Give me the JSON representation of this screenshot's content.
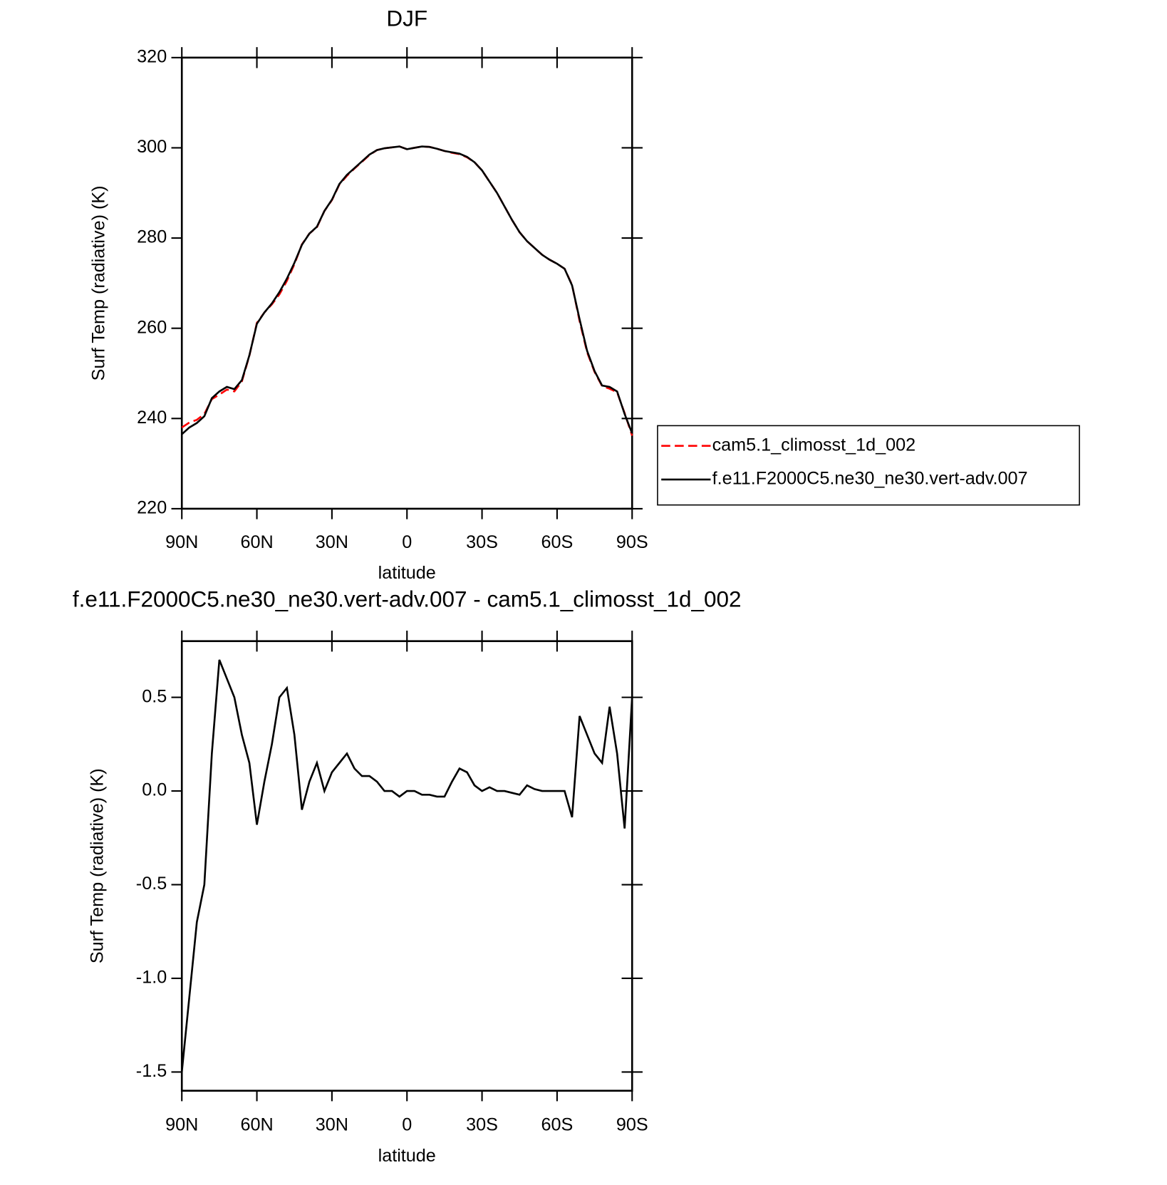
{
  "chart_data": [
    {
      "type": "line",
      "title": "DJF",
      "xlabel": "latitude",
      "ylabel": "Surf Temp (radiative) (K)",
      "x": [
        90,
        87,
        84,
        81,
        78,
        75,
        72,
        69,
        66,
        63,
        60,
        57,
        54,
        51,
        48,
        45,
        42,
        39,
        36,
        33,
        30,
        27,
        24,
        21,
        18,
        15,
        12,
        9,
        6,
        3,
        0,
        -3,
        -6,
        -9,
        -12,
        -15,
        -18,
        -21,
        -24,
        -27,
        -30,
        -33,
        -36,
        -39,
        -42,
        -45,
        -48,
        -51,
        -54,
        -57,
        -60,
        -63,
        -66,
        -69,
        -72,
        -75,
        -78,
        -81,
        -84,
        -87,
        -90
      ],
      "series": [
        {
          "name": "cam5.1_climosst_1d_002",
          "color": "#ff0000",
          "dashed": true,
          "values": [
            238,
            239.1,
            239.7,
            241,
            244.3,
            245.3,
            246.4,
            246,
            248.2,
            253.9,
            261.2,
            263.5,
            265.3,
            267.5,
            270.5,
            274.2,
            278.6,
            281,
            282.4,
            286,
            288.4,
            291.9,
            293.8,
            295.4,
            296.9,
            298.4,
            299.5,
            299.9,
            300.1,
            300.3,
            299.7,
            300,
            300.3,
            300.2,
            299.8,
            299.3,
            298.9,
            298.6,
            297.9,
            296.8,
            295,
            292.5,
            290,
            287,
            284,
            281.3,
            279.3,
            277.8,
            276.3,
            275.2,
            274.3,
            273.2,
            269.6,
            261.6,
            254.7,
            250.3,
            247.2,
            246.6,
            245.8,
            241.2,
            236.2
          ]
        },
        {
          "name": "f.e11.F2000C5.ne30_ne30.vert-adv.007",
          "color": "#000000",
          "dashed": false,
          "values": [
            236.5,
            238,
            239,
            240.5,
            244.5,
            246,
            247,
            246.5,
            248.5,
            254,
            261,
            263.5,
            265.5,
            268,
            271,
            274.5,
            278.5,
            281,
            282.5,
            286,
            288.5,
            292,
            294,
            295.5,
            297,
            298.5,
            299.5,
            299.9,
            300.1,
            300.3,
            299.7,
            300,
            300.3,
            300.2,
            299.8,
            299.3,
            299,
            298.7,
            298,
            296.8,
            295,
            292.5,
            290,
            287,
            284,
            281.3,
            279.3,
            277.8,
            276.3,
            275.2,
            274.3,
            273.2,
            269.5,
            262,
            255,
            250.5,
            247.3,
            247,
            246,
            241,
            236.7
          ]
        }
      ],
      "xlim": [
        90,
        -90
      ],
      "xticks": [
        {
          "value": 90,
          "label": "90N"
        },
        {
          "value": 60,
          "label": "60N"
        },
        {
          "value": 30,
          "label": "30N"
        },
        0,
        {
          "value": -30,
          "label": "30S"
        },
        {
          "value": -60,
          "label": "60S"
        },
        {
          "value": -90,
          "label": "90S"
        }
      ],
      "ylim": [
        220,
        320
      ],
      "yticks": [
        220,
        240,
        260,
        280,
        300,
        320
      ],
      "legend": "right"
    },
    {
      "type": "line",
      "title": "f.e11.F2000C5.ne30_ne30.vert-adv.007 - cam5.1_climosst_1d_002",
      "xlabel": "latitude",
      "ylabel": "Surf Temp (radiative) (K)",
      "x": [
        90,
        87,
        84,
        81,
        78,
        75,
        72,
        69,
        66,
        63,
        60,
        57,
        54,
        51,
        48,
        45,
        42,
        39,
        36,
        33,
        30,
        27,
        24,
        21,
        18,
        15,
        12,
        9,
        6,
        3,
        0,
        -3,
        -6,
        -9,
        -12,
        -15,
        -18,
        -21,
        -24,
        -27,
        -30,
        -33,
        -36,
        -39,
        -42,
        -45,
        -48,
        -51,
        -54,
        -57,
        -60,
        -63,
        -66,
        -69,
        -72,
        -75,
        -78,
        -81,
        -84,
        -87,
        -90
      ],
      "values": [
        -1.5,
        -1.1,
        -0.7,
        -0.5,
        0.2,
        0.7,
        0.6,
        0.5,
        0.3,
        0.15,
        -0.18,
        0.05,
        0.25,
        0.5,
        0.55,
        0.3,
        -0.1,
        0.05,
        0.15,
        0,
        0.1,
        0.15,
        0.2,
        0.12,
        0.08,
        0.08,
        0.05,
        0,
        0,
        -0.03,
        0,
        0,
        -0.02,
        -0.02,
        -0.03,
        -0.03,
        0.05,
        0.12,
        0.1,
        0.03,
        0,
        0.02,
        0,
        0,
        -0.01,
        -0.02,
        0.03,
        0.01,
        0,
        0,
        0,
        0,
        -0.14,
        0.4,
        0.3,
        0.2,
        0.15,
        0.45,
        0.2,
        -0.2,
        0.5
      ],
      "color": "#000000",
      "xlim": [
        90,
        -90
      ],
      "xticks": [
        {
          "value": 90,
          "label": "90N"
        },
        {
          "value": 60,
          "label": "60N"
        },
        {
          "value": 30,
          "label": "30N"
        },
        0,
        {
          "value": -30,
          "label": "30S"
        },
        {
          "value": -60,
          "label": "60S"
        },
        {
          "value": -90,
          "label": "90S"
        }
      ],
      "ylim": [
        -1.6,
        0.8
      ],
      "yticks": [
        -1.5,
        {
          "value": -1,
          "label": "-1.0"
        },
        -0.5,
        {
          "value": 0,
          "label": "0.0"
        },
        0.5
      ]
    }
  ]
}
